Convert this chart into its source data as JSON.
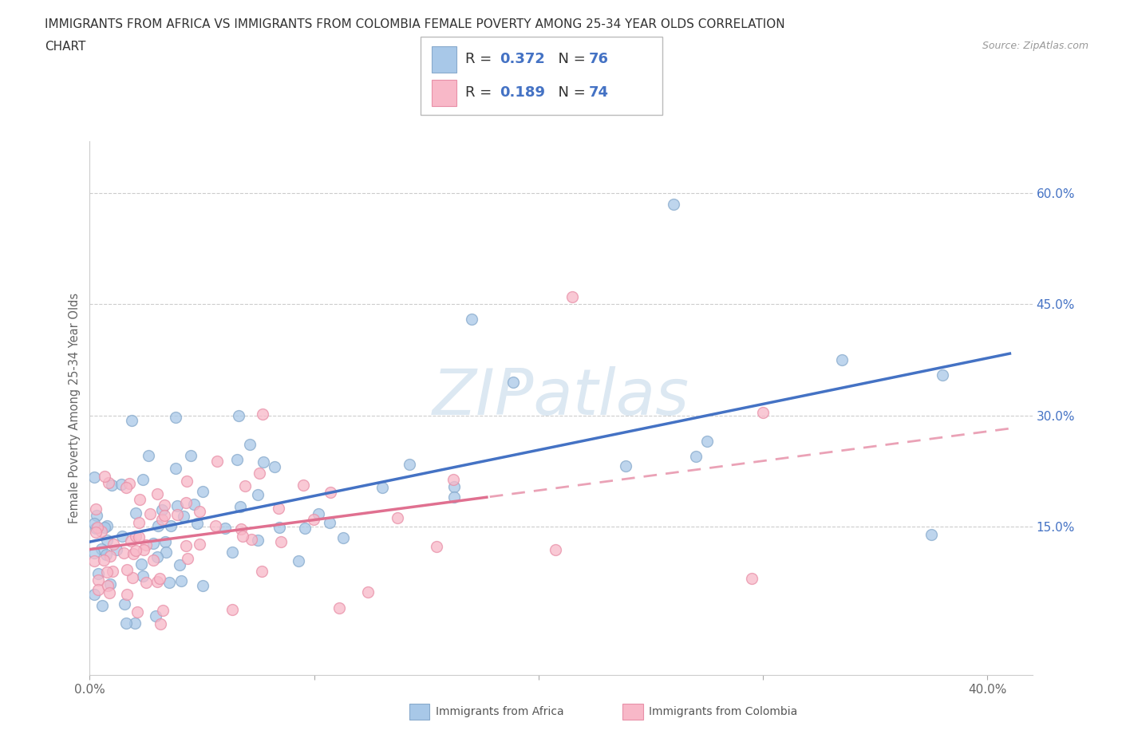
{
  "title_line1": "IMMIGRANTS FROM AFRICA VS IMMIGRANTS FROM COLOMBIA FEMALE POVERTY AMONG 25-34 YEAR OLDS CORRELATION",
  "title_line2": "CHART",
  "source": "Source: ZipAtlas.com",
  "ylabel": "Female Poverty Among 25-34 Year Olds",
  "xlim": [
    0.0,
    0.42
  ],
  "ylim": [
    -0.05,
    0.67
  ],
  "xtick_positions": [
    0.0,
    0.1,
    0.2,
    0.3,
    0.4
  ],
  "xtick_labels": [
    "0.0%",
    "",
    "",
    "",
    "40.0%"
  ],
  "ytick_positions": [
    0.15,
    0.3,
    0.45,
    0.6
  ],
  "ytick_labels": [
    "15.0%",
    "30.0%",
    "45.0%",
    "60.0%"
  ],
  "africa_R": 0.372,
  "africa_N": 76,
  "colombia_R": 0.189,
  "colombia_N": 74,
  "africa_dot_color": "#a8c8e8",
  "africa_edge_color": "#88aacc",
  "colombia_dot_color": "#f8b8c8",
  "colombia_edge_color": "#e890a8",
  "africa_line_color": "#4472c4",
  "colombia_line_color": "#e07090",
  "background_color": "#ffffff",
  "grid_color": "#cccccc",
  "watermark": "ZIPatlas",
  "watermark_color": "#dce8f2",
  "africa_seed": 15,
  "colombia_seed": 77
}
